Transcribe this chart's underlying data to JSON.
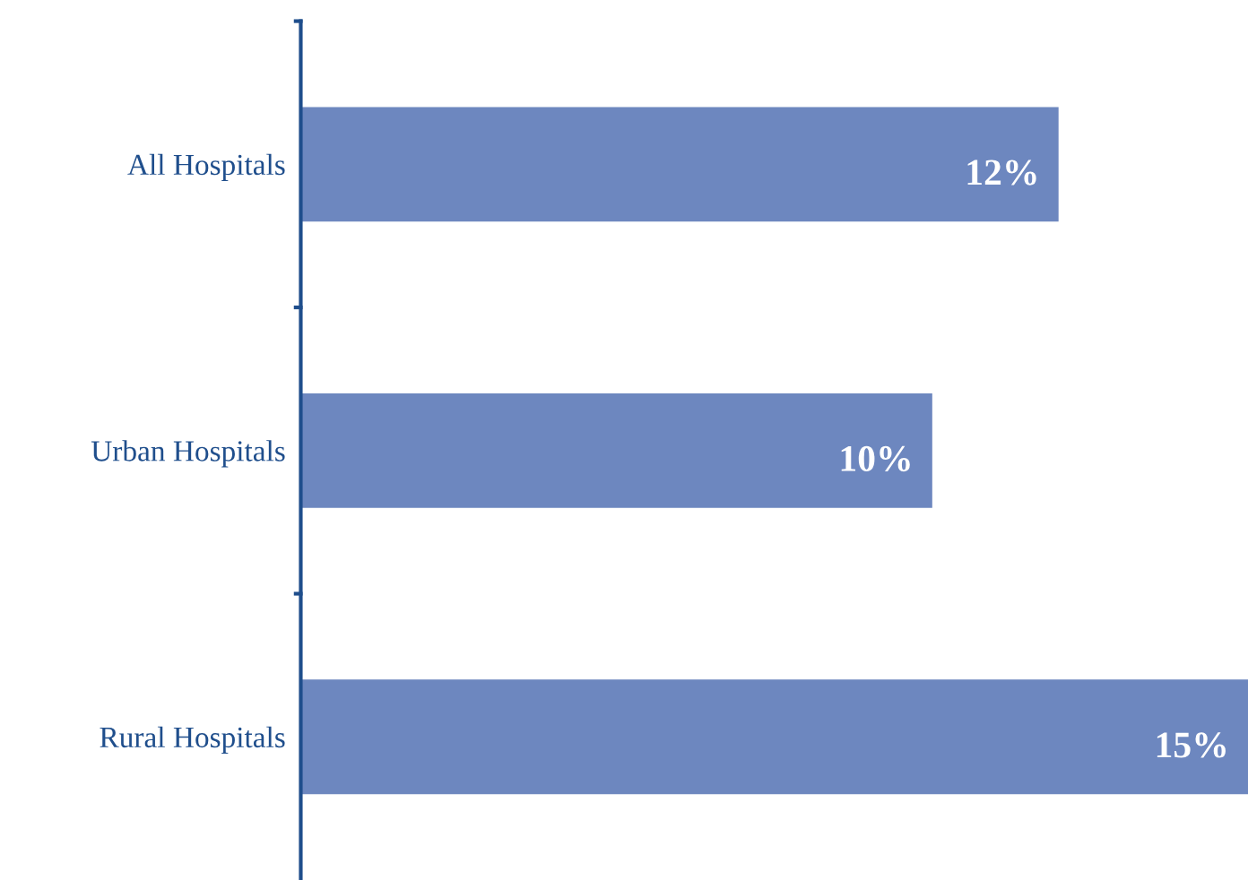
{
  "chart_data": {
    "type": "bar",
    "orientation": "horizontal",
    "categories": [
      "All Hospitals",
      "Urban Hospitals",
      "Rural Hospitals"
    ],
    "values": [
      12,
      10,
      15
    ],
    "color": "#6d87bf",
    "value_labels": [
      "12%",
      "10%",
      "15%"
    ],
    "xlim": [
      0,
      15
    ],
    "tick_labels": "y",
    "grid": false,
    "legend": false
  }
}
